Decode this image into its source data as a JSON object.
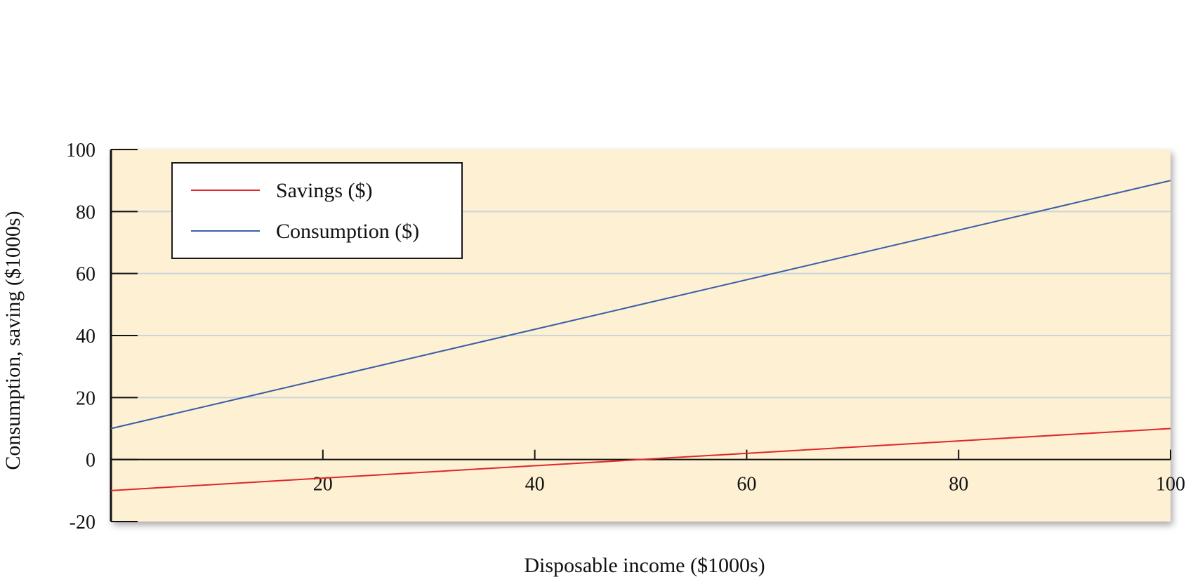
{
  "chart_data": {
    "type": "line",
    "xlabel": "Disposable income ($1000s)",
    "ylabel": "Consumption, saving ($1000s)",
    "xlim": [
      0,
      100
    ],
    "ylim": [
      -20,
      100
    ],
    "x_ticks": [
      20,
      40,
      60,
      80,
      100
    ],
    "y_ticks": [
      100,
      80,
      60,
      40,
      20,
      0,
      -20
    ],
    "grid": true,
    "legend_position": "top-left",
    "background_color": "#fdf0d3",
    "grid_color": "#c9d6dc",
    "series": [
      {
        "name": "Savings ($)",
        "color": "#e0262a",
        "x": [
          0,
          100
        ],
        "y": [
          -10,
          10
        ]
      },
      {
        "name": "Consumption ($)",
        "color": "#3a5ea6",
        "x": [
          0,
          100
        ],
        "y": [
          10,
          90
        ]
      }
    ]
  }
}
